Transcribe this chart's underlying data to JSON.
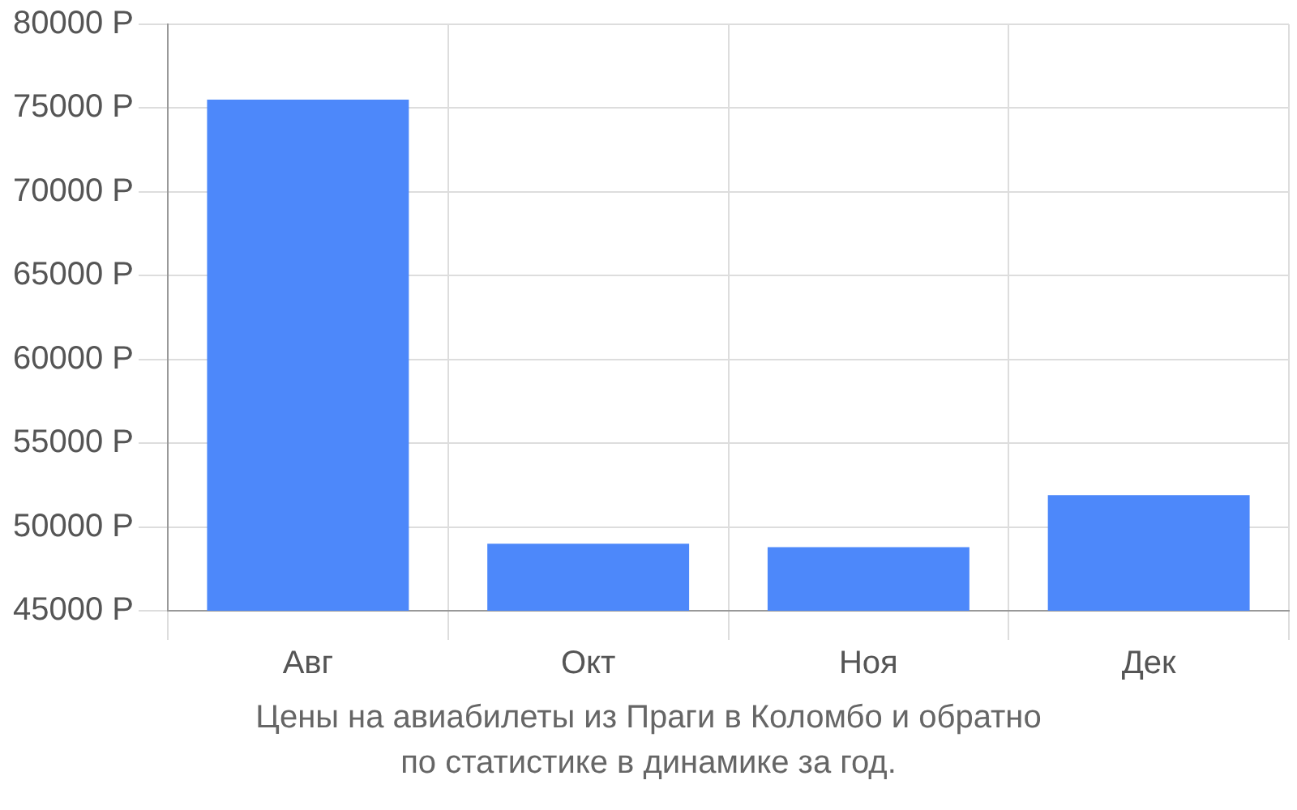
{
  "chart_data": {
    "type": "bar",
    "categories": [
      "Авг",
      "Окт",
      "Ноя",
      "Дек"
    ],
    "values": [
      75500,
      49000,
      48800,
      51900
    ],
    "color": "#4d88fa",
    "ylim": [
      45000,
      80000
    ],
    "yticks": [
      {
        "value": 45000,
        "label": "45000 Р"
      },
      {
        "value": 50000,
        "label": "50000 Р"
      },
      {
        "value": 55000,
        "label": "55000 Р"
      },
      {
        "value": 60000,
        "label": "60000 Р"
      },
      {
        "value": 65000,
        "label": "65000 Р"
      },
      {
        "value": 70000,
        "label": "70000 Р"
      },
      {
        "value": 75000,
        "label": "75000 Р"
      },
      {
        "value": 80000,
        "label": "80000 Р"
      }
    ],
    "grid": true,
    "annotations": [
      "Цены на авиабилеты из Праги в Коломбо и обратно",
      "по статистике в динамике за год."
    ]
  }
}
